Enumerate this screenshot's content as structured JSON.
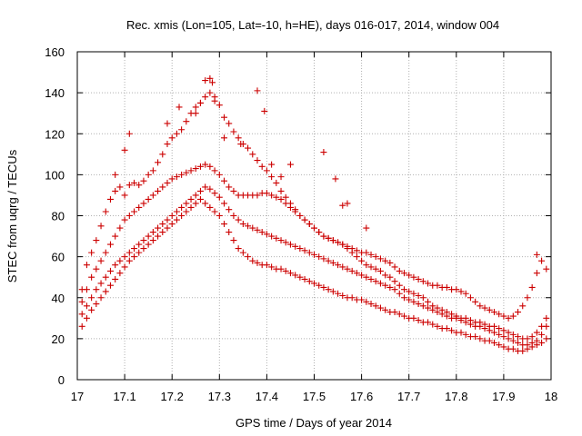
{
  "chart_data": {
    "type": "scatter",
    "title": "Rec. xmis (Lon=105, Lat=-10, h=HE), days 016-017, 2014, window 004",
    "xlabel": "GPS time / Days of year 2014",
    "ylabel": "STEC from uqrg / TECUs",
    "xlim": [
      17,
      18
    ],
    "ylim": [
      0,
      160
    ],
    "xticks": [
      "17",
      "17.1",
      "17.2",
      "17.3",
      "17.4",
      "17.5",
      "17.6",
      "17.7",
      "17.8",
      "17.9",
      "18"
    ],
    "yticks": [
      "0",
      "20",
      "40",
      "60",
      "80",
      "100",
      "120",
      "140",
      "160"
    ],
    "grid": true,
    "legend": "none",
    "marker": "+",
    "color": "#cc0000",
    "series": [
      {
        "x": [
          17.01,
          17.02,
          17.03,
          17.04,
          17.05,
          17.06,
          17.07,
          17.08,
          17.09,
          17.1,
          17.11,
          17.12,
          17.13,
          17.14,
          17.15,
          17.16,
          17.17,
          17.18,
          17.19,
          17.2,
          17.21,
          17.22,
          17.23,
          17.24,
          17.25,
          17.26,
          17.27,
          17.28,
          17.29,
          17.3,
          17.31,
          17.32,
          17.33,
          17.34,
          17.35,
          17.36,
          17.37,
          17.38,
          17.39,
          17.4,
          17.41,
          17.42,
          17.43,
          17.44,
          17.45,
          17.46,
          17.47,
          17.48,
          17.49,
          17.5,
          17.51,
          17.52,
          17.53,
          17.54,
          17.55,
          17.56,
          17.57,
          17.58,
          17.59,
          17.6,
          17.61,
          17.62,
          17.63,
          17.64,
          17.65,
          17.66,
          17.67,
          17.68,
          17.69,
          17.7,
          17.71,
          17.72,
          17.73,
          17.74,
          17.75,
          17.76,
          17.77,
          17.78,
          17.79,
          17.8,
          17.81,
          17.82,
          17.83,
          17.84,
          17.85,
          17.86,
          17.87,
          17.88,
          17.89,
          17.9,
          17.91,
          17.92,
          17.93,
          17.94,
          17.95,
          17.96,
          17.97,
          17.98,
          17.99
        ],
        "y": [
          44,
          56,
          62,
          68,
          75,
          82,
          88,
          92,
          94,
          90,
          95,
          96,
          95,
          97,
          100,
          102,
          106,
          110,
          115,
          118,
          120,
          122,
          126,
          130,
          133,
          135,
          138,
          140,
          138,
          134,
          128,
          125,
          121,
          118,
          115,
          113,
          110,
          107,
          104,
          102,
          99,
          96,
          92,
          89,
          86,
          83,
          80,
          78,
          76,
          74,
          72,
          70,
          69,
          68,
          67,
          66,
          65,
          64,
          63,
          62,
          62,
          61,
          60,
          59,
          58,
          57,
          55,
          53,
          52,
          51,
          50,
          49,
          48,
          47,
          46,
          46,
          45,
          45,
          44,
          44,
          43,
          42,
          40,
          38,
          36,
          35,
          34,
          33,
          32,
          31,
          30,
          31,
          33,
          36,
          40,
          45,
          52,
          58,
          54
        ]
      },
      {
        "x": [
          17.01,
          17.02,
          17.03,
          17.04,
          17.05,
          17.06,
          17.07,
          17.08,
          17.09,
          17.1,
          17.11,
          17.12,
          17.13,
          17.14,
          17.15,
          17.16,
          17.17,
          17.18,
          17.19,
          17.2,
          17.21,
          17.22,
          17.23,
          17.24,
          17.25,
          17.26,
          17.27,
          17.28,
          17.29,
          17.3,
          17.31,
          17.32,
          17.33,
          17.34,
          17.35,
          17.36,
          17.37,
          17.38,
          17.39,
          17.4,
          17.41,
          17.42,
          17.43,
          17.44,
          17.45,
          17.46,
          17.47,
          17.48,
          17.49,
          17.5,
          17.51,
          17.52,
          17.53,
          17.54,
          17.55,
          17.56,
          17.57,
          17.58,
          17.59,
          17.6,
          17.61,
          17.62,
          17.63,
          17.64,
          17.65,
          17.66,
          17.67,
          17.68,
          17.69,
          17.7,
          17.71,
          17.72,
          17.73,
          17.74,
          17.75,
          17.76,
          17.77,
          17.78,
          17.79,
          17.8,
          17.81,
          17.82,
          17.83,
          17.84,
          17.85,
          17.86,
          17.87,
          17.88,
          17.89,
          17.9,
          17.91,
          17.92,
          17.93,
          17.94,
          17.95,
          17.96,
          17.97,
          17.98,
          17.99
        ],
        "y": [
          38,
          44,
          50,
          54,
          58,
          62,
          66,
          70,
          74,
          78,
          80,
          82,
          84,
          86,
          88,
          90,
          92,
          94,
          96,
          98,
          99,
          100,
          101,
          102,
          103,
          104,
          105,
          104,
          102,
          100,
          97,
          94,
          92,
          90,
          90,
          90,
          90,
          90,
          91,
          91,
          90,
          89,
          88,
          86,
          84,
          82,
          80,
          78,
          76,
          74,
          72,
          70,
          69,
          68,
          67,
          66,
          64,
          62,
          60,
          58,
          56,
          55,
          54,
          53,
          51,
          50,
          48,
          46,
          44,
          43,
          42,
          41,
          40,
          38,
          36,
          35,
          34,
          33,
          32,
          31,
          30,
          30,
          29,
          28,
          28,
          27,
          26,
          26,
          25,
          24,
          23,
          22,
          21,
          20,
          20,
          21,
          23,
          26,
          30
        ]
      },
      {
        "x": [
          17.01,
          17.02,
          17.03,
          17.04,
          17.05,
          17.06,
          17.07,
          17.08,
          17.09,
          17.1,
          17.11,
          17.12,
          17.13,
          17.14,
          17.15,
          17.16,
          17.17,
          17.18,
          17.19,
          17.2,
          17.21,
          17.22,
          17.23,
          17.24,
          17.25,
          17.26,
          17.27,
          17.28,
          17.29,
          17.3,
          17.31,
          17.32,
          17.33,
          17.34,
          17.35,
          17.36,
          17.37,
          17.38,
          17.39,
          17.4,
          17.41,
          17.42,
          17.43,
          17.44,
          17.45,
          17.46,
          17.47,
          17.48,
          17.49,
          17.5,
          17.51,
          17.52,
          17.53,
          17.54,
          17.55,
          17.56,
          17.57,
          17.58,
          17.59,
          17.6,
          17.61,
          17.62,
          17.63,
          17.64,
          17.65,
          17.66,
          17.67,
          17.68,
          17.69,
          17.7,
          17.71,
          17.72,
          17.73,
          17.74,
          17.75,
          17.76,
          17.77,
          17.78,
          17.79,
          17.8,
          17.81,
          17.82,
          17.83,
          17.84,
          17.85,
          17.86,
          17.87,
          17.88,
          17.89,
          17.9,
          17.91,
          17.92,
          17.93,
          17.94,
          17.95,
          17.96,
          17.97,
          17.98,
          17.99
        ],
        "y": [
          32,
          36,
          40,
          44,
          47,
          50,
          53,
          56,
          58,
          60,
          62,
          64,
          66,
          68,
          70,
          72,
          74,
          76,
          78,
          80,
          82,
          84,
          86,
          88,
          90,
          92,
          94,
          93,
          91,
          89,
          86,
          83,
          80,
          78,
          76,
          75,
          74,
          73,
          72,
          71,
          70,
          69,
          68,
          67,
          66,
          65,
          64,
          63,
          62,
          61,
          60,
          59,
          58,
          57,
          56,
          55,
          54,
          53,
          52,
          51,
          50,
          49,
          48,
          47,
          46,
          45,
          44,
          42,
          40,
          39,
          38,
          37,
          36,
          35,
          34,
          33,
          32,
          31,
          30,
          30,
          29,
          28,
          27,
          26,
          26,
          25,
          24,
          23,
          22,
          21,
          20,
          19,
          18,
          17,
          17,
          18,
          19,
          22,
          26
        ]
      },
      {
        "x": [
          17.01,
          17.02,
          17.03,
          17.04,
          17.05,
          17.06,
          17.07,
          17.08,
          17.09,
          17.1,
          17.11,
          17.12,
          17.13,
          17.14,
          17.15,
          17.16,
          17.17,
          17.18,
          17.19,
          17.2,
          17.21,
          17.22,
          17.23,
          17.24,
          17.25,
          17.26,
          17.27,
          17.28,
          17.29,
          17.3,
          17.31,
          17.32,
          17.33,
          17.34,
          17.35,
          17.36,
          17.37,
          17.38,
          17.39,
          17.4,
          17.41,
          17.42,
          17.43,
          17.44,
          17.45,
          17.46,
          17.47,
          17.48,
          17.49,
          17.5,
          17.51,
          17.52,
          17.53,
          17.54,
          17.55,
          17.56,
          17.57,
          17.58,
          17.59,
          17.6,
          17.61,
          17.62,
          17.63,
          17.64,
          17.65,
          17.66,
          17.67,
          17.68,
          17.69,
          17.7,
          17.71,
          17.72,
          17.73,
          17.74,
          17.75,
          17.76,
          17.77,
          17.78,
          17.79,
          17.8,
          17.81,
          17.82,
          17.83,
          17.84,
          17.85,
          17.86,
          17.87,
          17.88,
          17.89,
          17.9,
          17.91,
          17.92,
          17.93,
          17.94,
          17.95,
          17.96,
          17.97,
          17.98,
          17.99
        ],
        "y": [
          26,
          30,
          34,
          37,
          40,
          43,
          46,
          49,
          52,
          55,
          58,
          60,
          62,
          64,
          66,
          68,
          70,
          72,
          74,
          76,
          78,
          80,
          82,
          84,
          86,
          88,
          86,
          84,
          82,
          80,
          76,
          72,
          68,
          64,
          62,
          60,
          58,
          57,
          56,
          56,
          55,
          54,
          54,
          53,
          52,
          51,
          50,
          49,
          48,
          47,
          46,
          45,
          44,
          43,
          42,
          41,
          40,
          40,
          39,
          39,
          38,
          37,
          36,
          35,
          34,
          33,
          33,
          32,
          31,
          30,
          30,
          29,
          28,
          28,
          27,
          26,
          25,
          25,
          24,
          23,
          23,
          22,
          21,
          21,
          20,
          19,
          19,
          18,
          17,
          16,
          15,
          15,
          14,
          14,
          15,
          16,
          17,
          18,
          20
        ]
      },
      {
        "x": [
          17.26,
          17.27,
          17.28,
          17.285,
          17.29,
          17.38,
          17.395,
          17.41,
          17.52,
          17.545,
          17.57,
          17.61,
          17.97,
          17.11,
          17.1,
          17.08,
          17.19,
          17.215,
          17.25,
          17.31,
          17.345,
          17.45,
          17.43,
          17.56
        ],
        "y": [
          135,
          146,
          147,
          145,
          136,
          141,
          131,
          105,
          111,
          98,
          86,
          74,
          61,
          120,
          112,
          100,
          125,
          133,
          130,
          118,
          115,
          105,
          99,
          85
        ]
      }
    ]
  }
}
